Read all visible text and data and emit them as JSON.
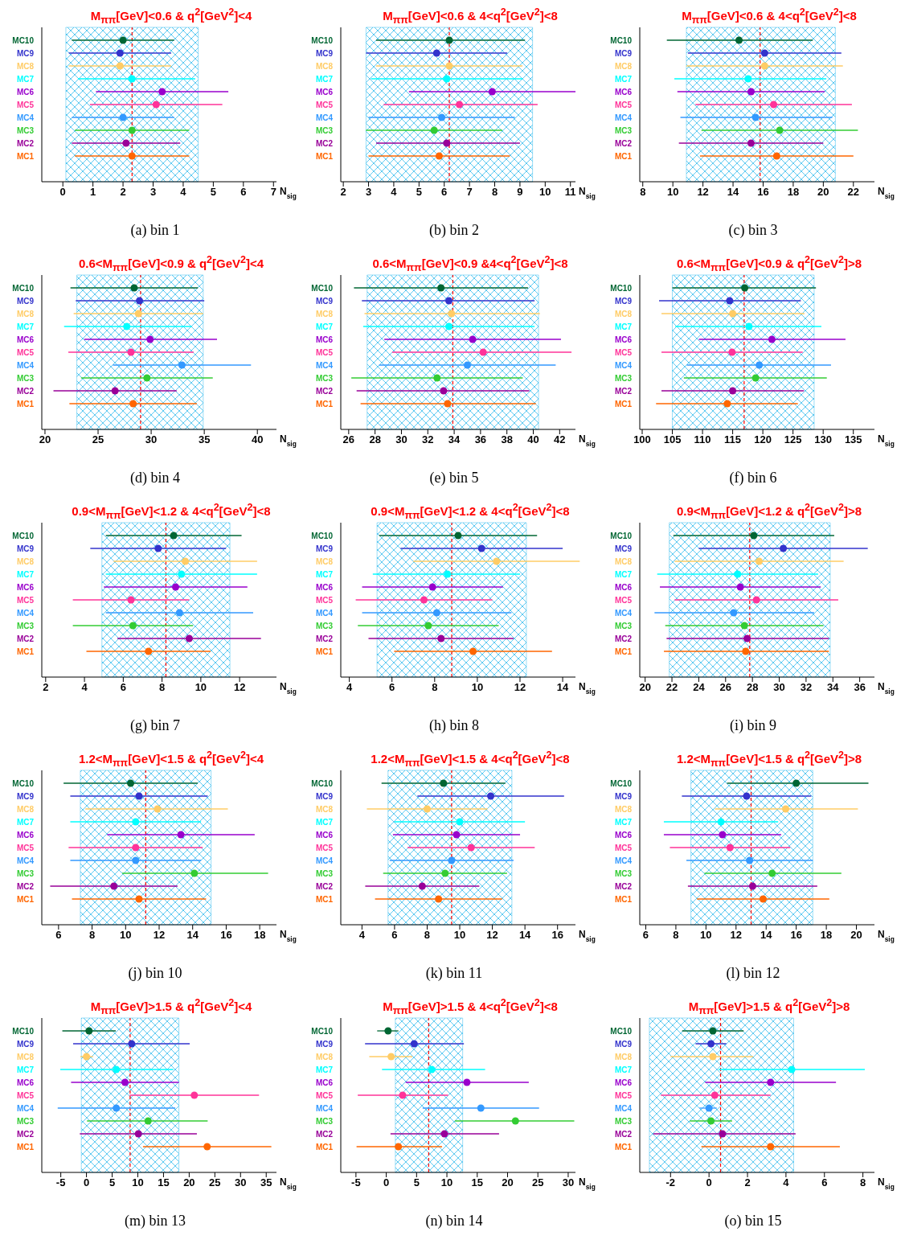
{
  "chart_data": [
    {
      "type": "scatter",
      "orientation": "horizontal",
      "marker": "circle",
      "title": "M$_{ππ}$[GeV]<0.6 & q$^{2}$[GeV$^{2}$]<4",
      "xlabel": "N$_{sig}$",
      "categories": [
        "MC10",
        "MC9",
        "MC8",
        "MC7",
        "MC6",
        "MC5",
        "MC4",
        "MC3",
        "MC2",
        "MC1"
      ],
      "colors": [
        "#006633",
        "#3333cc",
        "#ffcc66",
        "#00ffff",
        "#9900cc",
        "#ff3399",
        "#3399ff",
        "#33cc33",
        "#990099",
        "#ff6600"
      ],
      "values": [
        2.0,
        1.9,
        1.9,
        2.3,
        3.3,
        3.1,
        2.0,
        2.3,
        2.1,
        2.3
      ],
      "errors": [
        [
          0.3,
          3.7
        ],
        [
          0.2,
          3.6
        ],
        [
          0.2,
          3.6
        ],
        [
          0.5,
          4.4
        ],
        [
          1.1,
          5.5
        ],
        [
          0.9,
          5.3
        ],
        [
          0.3,
          3.7
        ],
        [
          0.4,
          4.2
        ],
        [
          0.3,
          3.9
        ],
        [
          0.4,
          4.2
        ]
      ],
      "xlim": [
        -0.7,
        7.1
      ],
      "xticks": [
        0,
        1,
        2,
        3,
        4,
        5,
        6,
        7
      ],
      "ref_lines": [
        {
          "axis": "x",
          "value": 2.3,
          "line_style": "dashed",
          "color": "#ff0000"
        }
      ],
      "bands": [
        {
          "axis": "x",
          "from": 0.1,
          "to": 4.5,
          "color": "#33bbee"
        }
      ],
      "annotations": [
        "(a) bin 1"
      ]
    },
    {
      "type": "scatter",
      "orientation": "horizontal",
      "marker": "circle",
      "title": "M$_{ππ}$[GeV]<0.6 & 4<q$^{2}$[GeV$^{2}$]<8",
      "xlabel": "N$_{sig}$",
      "categories": [
        "MC10",
        "MC9",
        "MC8",
        "MC7",
        "MC6",
        "MC5",
        "MC4",
        "MC3",
        "MC2",
        "MC1"
      ],
      "colors": [
        "#006633",
        "#3333cc",
        "#ffcc66",
        "#00ffff",
        "#9900cc",
        "#ff3399",
        "#3399ff",
        "#33cc33",
        "#990099",
        "#ff6600"
      ],
      "values": [
        6.2,
        5.7,
        6.2,
        6.1,
        7.9,
        6.6,
        5.9,
        5.6,
        6.1,
        5.8
      ],
      "errors": [
        [
          3.3,
          9.2
        ],
        [
          2.9,
          8.5
        ],
        [
          3.3,
          9.1
        ],
        [
          3.1,
          9.1
        ],
        [
          4.6,
          11.2
        ],
        [
          3.6,
          9.7
        ],
        [
          3.0,
          8.8
        ],
        [
          2.9,
          8.3
        ],
        [
          3.3,
          9.0
        ],
        [
          3.0,
          8.6
        ]
      ],
      "xlim": [
        1.9,
        11.2
      ],
      "xticks": [
        2,
        3,
        4,
        5,
        6,
        7,
        8,
        9,
        10,
        11
      ],
      "ref_lines": [
        {
          "axis": "x",
          "value": 6.2,
          "line_style": "dashed",
          "color": "#ff0000"
        }
      ],
      "bands": [
        {
          "axis": "x",
          "from": 2.9,
          "to": 9.5,
          "color": "#33bbee"
        }
      ],
      "annotations": [
        "(b) bin 2"
      ]
    },
    {
      "type": "scatter",
      "orientation": "horizontal",
      "marker": "circle",
      "title": "M$_{ππ}$[GeV]<0.6 & 4<q$^{2}$[GeV$^{2}$]<8",
      "xlabel": "N$_{sig}$",
      "categories": [
        "MC10",
        "MC9",
        "MC8",
        "MC7",
        "MC6",
        "MC5",
        "MC4",
        "MC3",
        "MC2",
        "MC1"
      ],
      "colors": [
        "#006633",
        "#3333cc",
        "#ffcc66",
        "#00ffff",
        "#9900cc",
        "#ff3399",
        "#3399ff",
        "#33cc33",
        "#990099",
        "#ff6600"
      ],
      "values": [
        14.4,
        16.1,
        16.1,
        15.0,
        15.2,
        16.7,
        15.5,
        17.1,
        15.2,
        16.9
      ],
      "errors": [
        [
          9.6,
          19.3
        ],
        [
          11.0,
          21.2
        ],
        [
          10.9,
          21.3
        ],
        [
          10.1,
          20.2
        ],
        [
          10.3,
          20.1
        ],
        [
          11.5,
          21.9
        ],
        [
          10.5,
          20.6
        ],
        [
          11.9,
          22.3
        ],
        [
          10.4,
          20.0
        ],
        [
          11.8,
          22.0
        ]
      ],
      "xlim": [
        7.8,
        23.4
      ],
      "xticks": [
        8,
        10,
        12,
        14,
        16,
        18,
        20,
        22
      ],
      "ref_lines": [
        {
          "axis": "x",
          "value": 15.8,
          "line_style": "dashed",
          "color": "#ff0000"
        }
      ],
      "bands": [
        {
          "axis": "x",
          "from": 10.9,
          "to": 20.8,
          "color": "#33bbee"
        }
      ],
      "annotations": [
        "(c) bin 3"
      ]
    },
    {
      "type": "scatter",
      "orientation": "horizontal",
      "marker": "circle",
      "title": "0.6<M$_{ππ}$[GeV]<0.9 & q$^{2}$[GeV$^{2}$]<4",
      "xlabel": "N$_{sig}$",
      "categories": [
        "MC10",
        "MC9",
        "MC8",
        "MC7",
        "MC6",
        "MC5",
        "MC4",
        "MC3",
        "MC2",
        "MC1"
      ],
      "colors": [
        "#006633",
        "#3333cc",
        "#ffcc66",
        "#00ffff",
        "#9900cc",
        "#ff3399",
        "#3399ff",
        "#33cc33",
        "#990099",
        "#ff6600"
      ],
      "values": [
        28.4,
        28.9,
        28.8,
        27.7,
        29.9,
        28.1,
        32.9,
        29.6,
        26.6,
        28.3
      ],
      "errors": [
        [
          22.4,
          34.4
        ],
        [
          22.9,
          35.0
        ],
        [
          22.7,
          34.9
        ],
        [
          21.8,
          33.8
        ],
        [
          23.7,
          36.2
        ],
        [
          22.2,
          34.0
        ],
        [
          26.4,
          39.4
        ],
        [
          23.4,
          35.8
        ],
        [
          20.8,
          32.4
        ],
        [
          22.3,
          34.3
        ]
      ],
      "xlim": [
        19.7,
        41.8
      ],
      "xticks": [
        20,
        25,
        30,
        35,
        40
      ],
      "ref_lines": [
        {
          "axis": "x",
          "value": 29.0,
          "line_style": "dashed",
          "color": "#ff0000"
        }
      ],
      "bands": [
        {
          "axis": "x",
          "from": 23.0,
          "to": 34.9,
          "color": "#33bbee"
        }
      ],
      "annotations": [
        "(d) bin 4"
      ]
    },
    {
      "type": "scatter",
      "orientation": "horizontal",
      "marker": "circle",
      "title": "0.6<M$_{ππ}$[GeV]<0.9 &4<q$^{2}$[GeV$^{2}$]<8",
      "xlabel": "N$_{sig}$",
      "categories": [
        "MC10",
        "MC9",
        "MC8",
        "MC7",
        "MC6",
        "MC5",
        "MC4",
        "MC3",
        "MC2",
        "MC1"
      ],
      "colors": [
        "#006633",
        "#3333cc",
        "#ffcc66",
        "#00ffff",
        "#9900cc",
        "#ff3399",
        "#3399ff",
        "#33cc33",
        "#990099",
        "#ff6600"
      ],
      "values": [
        33.0,
        33.6,
        33.8,
        33.6,
        35.4,
        36.2,
        35.0,
        32.7,
        33.2,
        33.5
      ],
      "errors": [
        [
          26.4,
          39.6
        ],
        [
          27.0,
          40.1
        ],
        [
          27.2,
          40.5
        ],
        [
          27.1,
          40.1
        ],
        [
          28.7,
          42.1
        ],
        [
          29.3,
          42.9
        ],
        [
          28.3,
          41.7
        ],
        [
          26.2,
          39.2
        ],
        [
          26.6,
          39.7
        ],
        [
          26.9,
          40.2
        ]
      ],
      "xlim": [
        25.4,
        43.2
      ],
      "xticks": [
        26,
        28,
        30,
        32,
        34,
        36,
        38,
        40,
        42
      ],
      "ref_lines": [
        {
          "axis": "x",
          "value": 33.9,
          "line_style": "dashed",
          "color": "#ff0000"
        }
      ],
      "bands": [
        {
          "axis": "x",
          "from": 27.4,
          "to": 40.4,
          "color": "#33bbee"
        }
      ],
      "annotations": [
        "(e) bin 5"
      ]
    },
    {
      "type": "scatter",
      "orientation": "horizontal",
      "marker": "circle",
      "title": "0.6<M$_{ππ}$[GeV]<0.9 & q$^{2}$[GeV$^{2}$]>8",
      "xlabel": "N$_{sig}$",
      "categories": [
        "MC10",
        "MC9",
        "MC8",
        "MC7",
        "MC6",
        "MC5",
        "MC4",
        "MC3",
        "MC2",
        "MC1"
      ],
      "colors": [
        "#006633",
        "#3333cc",
        "#ffcc66",
        "#00ffff",
        "#9900cc",
        "#ff3399",
        "#3399ff",
        "#33cc33",
        "#990099",
        "#ff6600"
      ],
      "values": [
        117.0,
        114.5,
        115.0,
        117.7,
        121.5,
        114.9,
        119.4,
        118.8,
        115.0,
        114.1
      ],
      "errors": [
        [
          105.0,
          128.8
        ],
        [
          102.8,
          126.3
        ],
        [
          103.2,
          126.9
        ],
        [
          105.5,
          129.7
        ],
        [
          109.4,
          133.7
        ],
        [
          103.2,
          126.6
        ],
        [
          107.4,
          131.3
        ],
        [
          106.9,
          130.6
        ],
        [
          103.2,
          126.8
        ],
        [
          102.3,
          125.8
        ]
      ],
      "xlim": [
        99.6,
        138.5
      ],
      "xticks": [
        100,
        105,
        110,
        115,
        120,
        125,
        130,
        135
      ],
      "ref_lines": [
        {
          "axis": "x",
          "value": 116.9,
          "line_style": "dashed",
          "color": "#ff0000"
        }
      ],
      "bands": [
        {
          "axis": "x",
          "from": 105.0,
          "to": 128.5,
          "color": "#33bbee"
        }
      ],
      "annotations": [
        "(f) bin 6"
      ]
    },
    {
      "type": "scatter",
      "orientation": "horizontal",
      "marker": "circle",
      "title": "0.9<M$_{ππ}$[GeV]<1.2 & 4<q$^{2}$[GeV$^{2}$]<8",
      "xlabel": "N$_{sig}$",
      "categories": [
        "MC10",
        "MC9",
        "MC8",
        "MC7",
        "MC6",
        "MC5",
        "MC4",
        "MC3",
        "MC2",
        "MC1"
      ],
      "colors": [
        "#006633",
        "#3333cc",
        "#ffcc66",
        "#00ffff",
        "#9900cc",
        "#ff3399",
        "#3399ff",
        "#33cc33",
        "#990099",
        "#ff6600"
      ],
      "values": [
        8.6,
        7.8,
        9.2,
        9.0,
        8.7,
        6.4,
        8.9,
        6.5,
        9.4,
        7.3
      ],
      "errors": [
        [
          5.1,
          12.1
        ],
        [
          4.3,
          11.3
        ],
        [
          5.5,
          12.9
        ],
        [
          5.1,
          12.9
        ],
        [
          5.0,
          12.4
        ],
        [
          3.4,
          9.4
        ],
        [
          5.1,
          12.7
        ],
        [
          3.4,
          9.6
        ],
        [
          5.7,
          13.1
        ],
        [
          4.1,
          10.5
        ]
      ],
      "xlim": [
        1.8,
        13.9
      ],
      "xticks": [
        2,
        4,
        6,
        8,
        10,
        12
      ],
      "ref_lines": [
        {
          "axis": "x",
          "value": 8.2,
          "line_style": "dashed",
          "color": "#ff0000"
        }
      ],
      "bands": [
        {
          "axis": "x",
          "from": 4.9,
          "to": 11.5,
          "color": "#33bbee"
        }
      ],
      "annotations": [
        "(g) bin 7"
      ]
    },
    {
      "type": "scatter",
      "orientation": "horizontal",
      "marker": "circle",
      "title": "0.9<M$_{ππ}$[GeV]<1.2 & 4<q$^{2}$[GeV$^{2}$]<8",
      "xlabel": "N$_{sig}$",
      "categories": [
        "MC10",
        "MC9",
        "MC8",
        "MC7",
        "MC6",
        "MC5",
        "MC4",
        "MC3",
        "MC2",
        "MC1"
      ],
      "colors": [
        "#006633",
        "#3333cc",
        "#ffcc66",
        "#00ffff",
        "#9900cc",
        "#ff3399",
        "#3399ff",
        "#33cc33",
        "#990099",
        "#ff6600"
      ],
      "values": [
        9.1,
        10.2,
        10.9,
        8.6,
        7.9,
        7.5,
        8.1,
        7.7,
        8.3,
        9.8
      ],
      "errors": [
        [
          5.4,
          12.8
        ],
        [
          6.4,
          14.0
        ],
        [
          7.0,
          14.8
        ],
        [
          5.1,
          12.0
        ],
        [
          4.6,
          11.2
        ],
        [
          4.3,
          10.7
        ],
        [
          4.6,
          11.6
        ],
        [
          4.4,
          11.0
        ],
        [
          4.9,
          11.7
        ],
        [
          6.1,
          13.5
        ]
      ],
      "xlim": [
        3.6,
        14.6
      ],
      "xticks": [
        4,
        6,
        8,
        10,
        12,
        14
      ],
      "ref_lines": [
        {
          "axis": "x",
          "value": 8.8,
          "line_style": "dashed",
          "color": "#ff0000"
        }
      ],
      "bands": [
        {
          "axis": "x",
          "from": 5.3,
          "to": 12.3,
          "color": "#33bbee"
        }
      ],
      "annotations": [
        "(h) bin 8"
      ]
    },
    {
      "type": "scatter",
      "orientation": "horizontal",
      "marker": "circle",
      "title": "0.9<M$_{ππ}$[GeV]<1.2 & q$^{2}$[GeV$^{2}$]>8",
      "xlabel": "N$_{sig}$",
      "categories": [
        "MC10",
        "MC9",
        "MC8",
        "MC7",
        "MC6",
        "MC5",
        "MC4",
        "MC3",
        "MC2",
        "MC1"
      ],
      "colors": [
        "#006633",
        "#3333cc",
        "#ffcc66",
        "#00ffff",
        "#9900cc",
        "#ff3399",
        "#3399ff",
        "#33cc33",
        "#990099",
        "#ff6600"
      ],
      "values": [
        28.1,
        30.3,
        28.5,
        26.9,
        27.1,
        28.3,
        26.6,
        27.4,
        27.6,
        27.5
      ],
      "errors": [
        [
          22.1,
          34.1
        ],
        [
          24.0,
          36.6
        ],
        [
          22.2,
          34.8
        ],
        [
          20.9,
          32.9
        ],
        [
          21.1,
          33.1
        ],
        [
          22.2,
          34.4
        ],
        [
          20.7,
          32.6
        ],
        [
          21.5,
          33.3
        ],
        [
          21.6,
          33.7
        ],
        [
          21.4,
          33.7
        ]
      ],
      "xlim": [
        19.6,
        37.1
      ],
      "xticks": [
        20,
        22,
        24,
        26,
        28,
        30,
        32,
        34,
        36
      ],
      "ref_lines": [
        {
          "axis": "x",
          "value": 27.8,
          "line_style": "dashed",
          "color": "#ff0000"
        }
      ],
      "bands": [
        {
          "axis": "x",
          "from": 21.8,
          "to": 33.8,
          "color": "#33bbee"
        }
      ],
      "annotations": [
        "(i) bin 9"
      ]
    },
    {
      "type": "scatter",
      "orientation": "horizontal",
      "marker": "circle",
      "title": "1.2<M$_{ππ}$[GeV]<1.5 & q$^{2}$[GeV$^{2}$]<4",
      "xlabel": "N$_{sig}$",
      "categories": [
        "MC10",
        "MC9",
        "MC8",
        "MC7",
        "MC6",
        "MC5",
        "MC4",
        "MC3",
        "MC2",
        "MC1"
      ],
      "colors": [
        "#006633",
        "#3333cc",
        "#ffcc66",
        "#00ffff",
        "#9900cc",
        "#ff3399",
        "#3399ff",
        "#33cc33",
        "#990099",
        "#ff6600"
      ],
      "values": [
        10.3,
        10.8,
        11.9,
        10.6,
        13.3,
        10.6,
        10.6,
        14.1,
        9.3,
        10.8
      ],
      "errors": [
        [
          6.3,
          14.3
        ],
        [
          6.7,
          14.9
        ],
        [
          7.6,
          16.1
        ],
        [
          6.7,
          14.5
        ],
        [
          8.9,
          17.7
        ],
        [
          6.6,
          14.6
        ],
        [
          6.7,
          14.5
        ],
        [
          9.8,
          18.5
        ],
        [
          5.5,
          13.1
        ],
        [
          6.8,
          14.8
        ]
      ],
      "xlim": [
        5.0,
        19.0
      ],
      "xticks": [
        6,
        8,
        10,
        12,
        14,
        16,
        18
      ],
      "ref_lines": [
        {
          "axis": "x",
          "value": 11.2,
          "line_style": "dashed",
          "color": "#ff0000"
        }
      ],
      "bands": [
        {
          "axis": "x",
          "from": 7.3,
          "to": 15.1,
          "color": "#33bbee"
        }
      ],
      "annotations": [
        "(j) bin 10"
      ]
    },
    {
      "type": "scatter",
      "orientation": "horizontal",
      "marker": "circle",
      "title": "1.2<M$_{ππ}$[GeV]<1.5 & 4<q$^{2}$[GeV$^{2}$]<8",
      "xlabel": "N$_{sig}$",
      "categories": [
        "MC10",
        "MC9",
        "MC8",
        "MC7",
        "MC6",
        "MC5",
        "MC4",
        "MC3",
        "MC2",
        "MC1"
      ],
      "colors": [
        "#006633",
        "#3333cc",
        "#ffcc66",
        "#00ffff",
        "#9900cc",
        "#ff3399",
        "#3399ff",
        "#33cc33",
        "#990099",
        "#ff6600"
      ],
      "values": [
        9.0,
        11.9,
        8.0,
        10.0,
        9.8,
        10.7,
        9.5,
        9.1,
        7.7,
        8.7
      ],
      "errors": [
        [
          5.2,
          12.8
        ],
        [
          7.4,
          16.4
        ],
        [
          4.3,
          11.7
        ],
        [
          6.0,
          14.0
        ],
        [
          5.9,
          13.7
        ],
        [
          6.8,
          14.6
        ],
        [
          5.7,
          13.3
        ],
        [
          5.3,
          12.9
        ],
        [
          4.2,
          11.2
        ],
        [
          4.8,
          12.6
        ]
      ],
      "xlim": [
        2.7,
        17.1
      ],
      "xticks": [
        4,
        6,
        8,
        10,
        12,
        14,
        16
      ],
      "ref_lines": [
        {
          "axis": "x",
          "value": 9.5,
          "line_style": "dashed",
          "color": "#ff0000"
        }
      ],
      "bands": [
        {
          "axis": "x",
          "from": 5.6,
          "to": 13.2,
          "color": "#33bbee"
        }
      ],
      "annotations": [
        "(k) bin 11"
      ]
    },
    {
      "type": "scatter",
      "orientation": "horizontal",
      "marker": "circle",
      "title": "1.2<M$_{ππ}$[GeV]<1.5 & q$^{2}$[GeV$^{2}$]>8",
      "xlabel": "N$_{sig}$",
      "categories": [
        "MC10",
        "MC9",
        "MC8",
        "MC7",
        "MC6",
        "MC5",
        "MC4",
        "MC3",
        "MC2",
        "MC1"
      ],
      "colors": [
        "#006633",
        "#3333cc",
        "#ffcc66",
        "#00ffff",
        "#9900cc",
        "#ff3399",
        "#3399ff",
        "#33cc33",
        "#990099",
        "#ff6600"
      ],
      "values": [
        16.0,
        12.7,
        15.3,
        11.0,
        11.1,
        11.6,
        12.9,
        14.4,
        13.1,
        13.8
      ],
      "errors": [
        [
          11.4,
          20.8
        ],
        [
          8.4,
          17.0
        ],
        [
          10.6,
          20.1
        ],
        [
          7.2,
          14.8
        ],
        [
          7.2,
          15.0
        ],
        [
          7.6,
          15.6
        ],
        [
          8.7,
          17.1
        ],
        [
          9.9,
          19.0
        ],
        [
          8.8,
          17.4
        ],
        [
          9.4,
          18.2
        ]
      ],
      "xlim": [
        5.6,
        21.2
      ],
      "xticks": [
        6,
        8,
        10,
        12,
        14,
        16,
        18,
        20
      ],
      "ref_lines": [
        {
          "axis": "x",
          "value": 13.0,
          "line_style": "dashed",
          "color": "#ff0000"
        }
      ],
      "bands": [
        {
          "axis": "x",
          "from": 9.0,
          "to": 17.1,
          "color": "#33bbee"
        }
      ],
      "annotations": [
        "(l) bin 12"
      ]
    },
    {
      "type": "scatter",
      "orientation": "horizontal",
      "marker": "circle",
      "title": "M$_{ππ}$[GeV]>1.5 & q$^{2}$[GeV$^{2}$]<4",
      "xlabel": "N$_{sig}$",
      "categories": [
        "MC10",
        "MC9",
        "MC8",
        "MC7",
        "MC6",
        "MC5",
        "MC4",
        "MC3",
        "MC2",
        "MC1"
      ],
      "colors": [
        "#006633",
        "#3333cc",
        "#ffcc66",
        "#00ffff",
        "#9900cc",
        "#ff3399",
        "#3399ff",
        "#33cc33",
        "#990099",
        "#ff6600"
      ],
      "values": [
        0.5,
        8.8,
        0.0,
        5.8,
        7.5,
        21.0,
        5.8,
        12.0,
        10.1,
        23.5
      ],
      "errors": [
        [
          -4.7,
          5.7
        ],
        [
          -2.6,
          20.1
        ],
        [
          -1.2,
          1.3
        ],
        [
          -5.1,
          16.9
        ],
        [
          -3.0,
          18.0
        ],
        [
          8.4,
          33.6
        ],
        [
          -5.6,
          17.3
        ],
        [
          0.1,
          23.6
        ],
        [
          -1.3,
          21.5
        ],
        [
          11.0,
          36.0
        ]
      ],
      "xlim": [
        -8.7,
        37.0
      ],
      "xticks": [
        -5,
        0,
        5,
        10,
        15,
        20,
        25,
        30,
        35
      ],
      "ref_lines": [
        {
          "axis": "x",
          "value": 8.5,
          "line_style": "dashed",
          "color": "#ff0000"
        }
      ],
      "bands": [
        {
          "axis": "x",
          "from": -1.0,
          "to": 18.0,
          "color": "#33bbee"
        }
      ],
      "annotations": [
        "(m) bin 13"
      ]
    },
    {
      "type": "scatter",
      "orientation": "horizontal",
      "marker": "circle",
      "title": "M$_{ππ}$[GeV]>1.5 & 4<q$^{2}$[GeV$^{2}$]<8",
      "xlabel": "N$_{sig}$",
      "categories": [
        "MC10",
        "MC9",
        "MC8",
        "MC7",
        "MC6",
        "MC5",
        "MC4",
        "MC3",
        "MC2",
        "MC1"
      ],
      "colors": [
        "#006633",
        "#3333cc",
        "#ffcc66",
        "#00ffff",
        "#9900cc",
        "#ff3399",
        "#3399ff",
        "#33cc33",
        "#990099",
        "#ff6600"
      ],
      "values": [
        0.3,
        4.6,
        0.8,
        7.5,
        13.3,
        2.7,
        15.6,
        21.3,
        9.6,
        2.0
      ],
      "errors": [
        [
          -1.5,
          2.0
        ],
        [
          -3.5,
          12.8
        ],
        [
          -2.8,
          4.3
        ],
        [
          -0.7,
          16.3
        ],
        [
          3.2,
          23.5
        ],
        [
          -4.7,
          10.2
        ],
        [
          6.0,
          25.2
        ],
        [
          11.3,
          31.0
        ],
        [
          0.7,
          18.6
        ],
        [
          -4.9,
          9.2
        ]
      ],
      "xlim": [
        -7.5,
        31.2
      ],
      "xticks": [
        -5,
        0,
        5,
        10,
        15,
        20,
        25,
        30
      ],
      "ref_lines": [
        {
          "axis": "x",
          "value": 7.0,
          "line_style": "dashed",
          "color": "#ff0000"
        }
      ],
      "bands": [
        {
          "axis": "x",
          "from": 1.5,
          "to": 12.6,
          "color": "#33bbee"
        }
      ],
      "annotations": [
        "(n) bin 14"
      ]
    },
    {
      "type": "scatter",
      "orientation": "horizontal",
      "marker": "circle",
      "title": "M$_{ππ}$[GeV]>1.5 & q$^{2}$[GeV$^{2}$]>8",
      "xlabel": "N$_{sig}$",
      "categories": [
        "MC10",
        "MC9",
        "MC8",
        "MC7",
        "MC6",
        "MC5",
        "MC4",
        "MC3",
        "MC2",
        "MC1"
      ],
      "colors": [
        "#006633",
        "#3333cc",
        "#ffcc66",
        "#00ffff",
        "#9900cc",
        "#ff3399",
        "#3399ff",
        "#33cc33",
        "#990099",
        "#ff6600"
      ],
      "values": [
        0.2,
        0.1,
        0.2,
        4.3,
        3.2,
        0.3,
        0.0,
        0.1,
        0.7,
        3.2
      ],
      "errors": [
        [
          -1.4,
          1.8
        ],
        [
          -0.7,
          0.9
        ],
        [
          -2.0,
          2.3
        ],
        [
          0.5,
          8.1
        ],
        [
          -0.2,
          6.6
        ],
        [
          -2.5,
          3.2
        ],
        [
          -0.5,
          0.4
        ],
        [
          -1.0,
          1.2
        ],
        [
          -2.9,
          4.5
        ],
        [
          -0.4,
          6.8
        ]
      ],
      "xlim": [
        -3.6,
        8.6
      ],
      "xticks": [
        -2,
        0,
        2,
        4,
        6,
        8
      ],
      "ref_lines": [
        {
          "axis": "x",
          "value": 0.6,
          "line_style": "dashed",
          "color": "#ff0000"
        }
      ],
      "bands": [
        {
          "axis": "x",
          "from": -3.1,
          "to": 4.4,
          "color": "#33bbee"
        }
      ],
      "annotations": [
        "(o) bin 15"
      ]
    }
  ]
}
